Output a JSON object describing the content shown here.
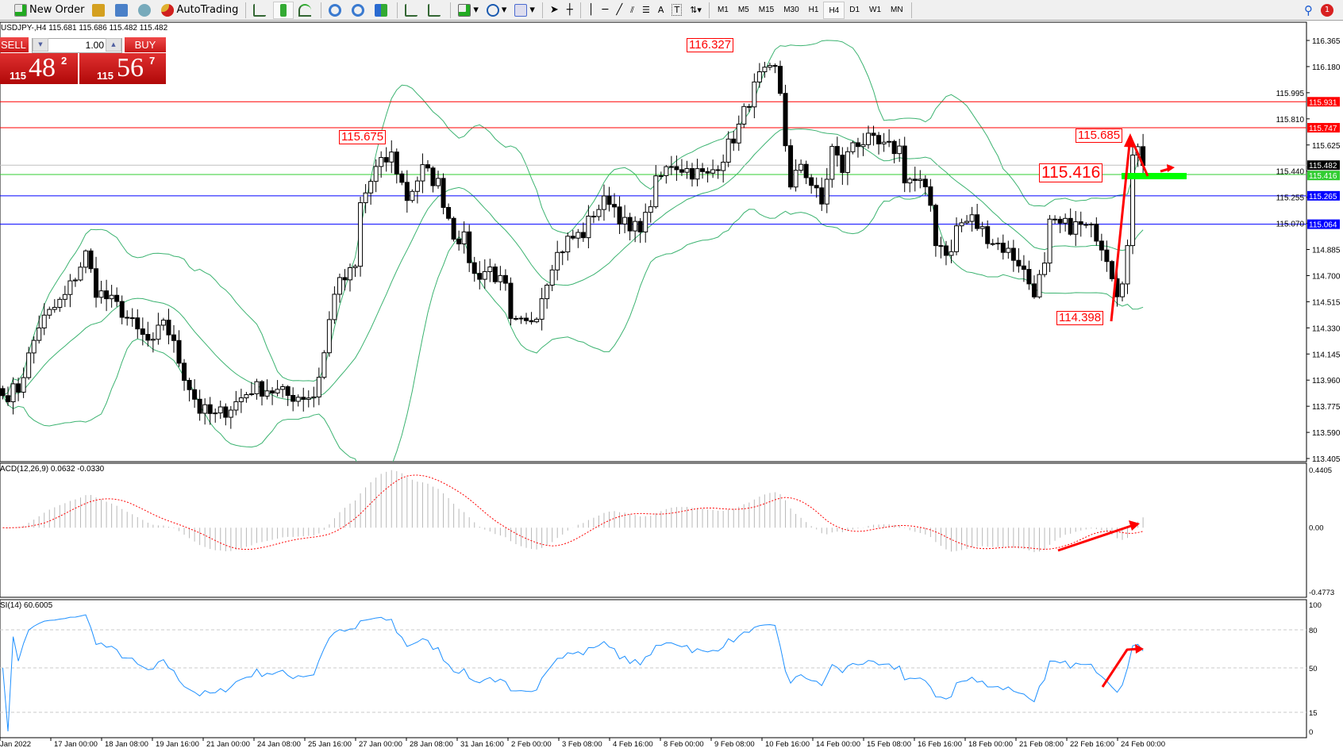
{
  "toolbar": {
    "new_order": "New Order",
    "autotrading": "AutoTrading",
    "icons": [
      "new-order-icon",
      "metaeditor-icon",
      "navigator-icon",
      "signals-icon",
      "autotrading-icon",
      "bar-chart-icon",
      "candlestick-icon",
      "line-chart-icon",
      "zoom-in-icon",
      "zoom-out-icon",
      "tile-windows-icon",
      "chart-shift-icon",
      "autoscroll-icon",
      "indicators-icon",
      "periods-icon",
      "templates-icon",
      "cursor-icon",
      "crosshair-icon",
      "vertical-line-icon",
      "horizontal-line-icon",
      "trendline-icon",
      "equidistant-channel-icon",
      "fibonacci-icon",
      "text-icon",
      "text-label-icon",
      "arrows-icon"
    ],
    "timeframes": [
      "M1",
      "M5",
      "M15",
      "M30",
      "H1",
      "H4",
      "D1",
      "W1",
      "MN"
    ],
    "active_timeframe": "H4",
    "notification_count": "1"
  },
  "chart": {
    "header": "USDJPY-,H4  115.681 115.686 115.482 115.482",
    "macd_label": "ACD(12,26,9) 0.0632 -0.0330",
    "rsi_label": "SI(14) 60.6005"
  },
  "trade_panel": {
    "sell_label": "SELL",
    "buy_label": "BUY",
    "lot": "1.00",
    "sell_price": {
      "big": "115",
      "main": "48",
      "pip": "2"
    },
    "buy_price": {
      "big": "115",
      "main": "56",
      "pip": "7"
    }
  },
  "annotations": [
    "116.327",
    "115.675",
    "115.685",
    "115.416",
    "114.398"
  ],
  "chart_data": [
    {
      "type": "candlestick",
      "symbol": "USDJPY-",
      "timeframe": "H4",
      "y_ticks": [
        "116.365",
        "116.180",
        "115.995",
        "115.810",
        "115.625",
        "115.440",
        "115.255",
        "115.070",
        "114.885",
        "114.700",
        "114.515",
        "114.330",
        "114.145",
        "113.960",
        "113.775",
        "113.590",
        "113.405"
      ],
      "ylim": [
        113.405,
        116.365
      ],
      "x_ticks": [
        "Jan 2022",
        "17 Jan 00:00",
        "18 Jan 08:00",
        "19 Jan 16:00",
        "21 Jan 00:00",
        "24 Jan 08:00",
        "25 Jan 16:00",
        "27 Jan 00:00",
        "28 Jan 08:00",
        "31 Jan 16:00",
        "2 Feb 00:00",
        "3 Feb 08:00",
        "4 Feb 16:00",
        "8 Feb 00:00",
        "9 Feb 08:00",
        "10 Feb 16:00",
        "14 Feb 00:00",
        "15 Feb 08:00",
        "16 Feb 16:00",
        "18 Feb 00:00",
        "21 Feb 08:00",
        "22 Feb 16:00",
        "24 Feb 00:00"
      ],
      "close_path": [
        [
          0,
          113.85
        ],
        [
          3,
          113.9
        ],
        [
          7,
          114.35
        ],
        [
          12,
          114.55
        ],
        [
          16,
          114.85
        ],
        [
          18,
          114.6
        ],
        [
          23,
          114.45
        ],
        [
          26,
          114.3
        ],
        [
          29,
          114.2
        ],
        [
          31,
          114.4
        ],
        [
          35,
          114.0
        ],
        [
          38,
          113.75
        ],
        [
          41,
          113.7
        ],
        [
          45,
          113.8
        ],
        [
          48,
          113.9
        ],
        [
          51,
          113.9
        ],
        [
          55,
          113.85
        ],
        [
          60,
          113.85
        ],
        [
          62,
          114.15
        ],
        [
          64,
          114.6
        ],
        [
          68,
          114.75
        ],
        [
          69,
          115.2
        ],
        [
          72,
          115.45
        ],
        [
          75,
          115.55
        ],
        [
          78,
          115.25
        ],
        [
          81,
          115.45
        ],
        [
          84,
          115.35
        ],
        [
          87,
          115.0
        ],
        [
          89,
          114.95
        ],
        [
          91,
          114.7
        ],
        [
          94,
          114.75
        ],
        [
          97,
          114.6
        ],
        [
          98,
          114.35
        ],
        [
          101,
          114.35
        ],
        [
          103,
          114.45
        ],
        [
          106,
          114.8
        ],
        [
          109,
          114.95
        ],
        [
          112,
          115.0
        ],
        [
          114,
          115.15
        ],
        [
          117,
          115.25
        ],
        [
          121,
          115.0
        ],
        [
          124,
          115.1
        ],
        [
          126,
          115.35
        ],
        [
          129,
          115.5
        ],
        [
          132,
          115.45
        ],
        [
          136,
          115.4
        ],
        [
          139,
          115.55
        ],
        [
          142,
          115.75
        ],
        [
          144,
          115.95
        ],
        [
          146,
          116.1
        ],
        [
          149,
          116.15
        ],
        [
          150,
          116.0
        ],
        [
          152,
          115.3
        ],
        [
          154,
          115.5
        ],
        [
          156,
          115.35
        ],
        [
          158,
          115.2
        ],
        [
          160,
          115.6
        ],
        [
          162,
          115.45
        ],
        [
          164,
          115.65
        ],
        [
          167,
          115.65
        ],
        [
          170,
          115.6
        ],
        [
          173,
          115.6
        ],
        [
          174,
          115.4
        ],
        [
          177,
          115.35
        ],
        [
          179,
          115.2
        ],
        [
          180,
          114.95
        ],
        [
          183,
          114.85
        ],
        [
          184,
          115.05
        ],
        [
          187,
          115.1
        ],
        [
          188,
          115.05
        ],
        [
          191,
          114.95
        ],
        [
          193,
          114.9
        ],
        [
          196,
          114.8
        ],
        [
          198,
          114.65
        ],
        [
          199,
          114.6
        ],
        [
          201,
          114.75
        ],
        [
          202,
          115.05
        ],
        [
          205,
          115.05
        ],
        [
          208,
          115.05
        ],
        [
          211,
          115.0
        ],
        [
          213,
          114.85
        ],
        [
          215,
          114.6
        ],
        [
          216,
          114.7
        ],
        [
          217,
          114.9
        ],
        [
          218,
          115.5
        ],
        [
          219,
          115.65
        ],
        [
          220,
          115.48
        ]
      ],
      "indicators": [
        "Bollinger Bands",
        "MACD(12,26,9)",
        "RSI(14)"
      ],
      "levels": [
        {
          "price": "115.931",
          "color": "#ff0000"
        },
        {
          "price": "115.747",
          "color": "#ff0000"
        },
        {
          "price": "115.482",
          "color": "#c0c0c0",
          "tag": "#000000"
        },
        {
          "price": "115.416",
          "color": "#32cd32"
        },
        {
          "price": "115.265",
          "color": "#0000ff"
        },
        {
          "price": "115.064",
          "color": "#0000ff"
        }
      ]
    },
    {
      "type": "macd",
      "y_ticks": [
        "0.4405",
        "0.00",
        "-0.4773"
      ],
      "ylim": [
        -0.4773,
        0.4405
      ]
    },
    {
      "type": "rsi",
      "y_ticks": [
        "100",
        "80",
        "50",
        "15",
        "0"
      ],
      "ylim": [
        0,
        100
      ]
    }
  ],
  "colors": {
    "bands": "#3cb371",
    "rsi": "#1e90ff",
    "signal": "#ff0000",
    "annotation": "#ff0000",
    "marker": "#00ff00"
  }
}
